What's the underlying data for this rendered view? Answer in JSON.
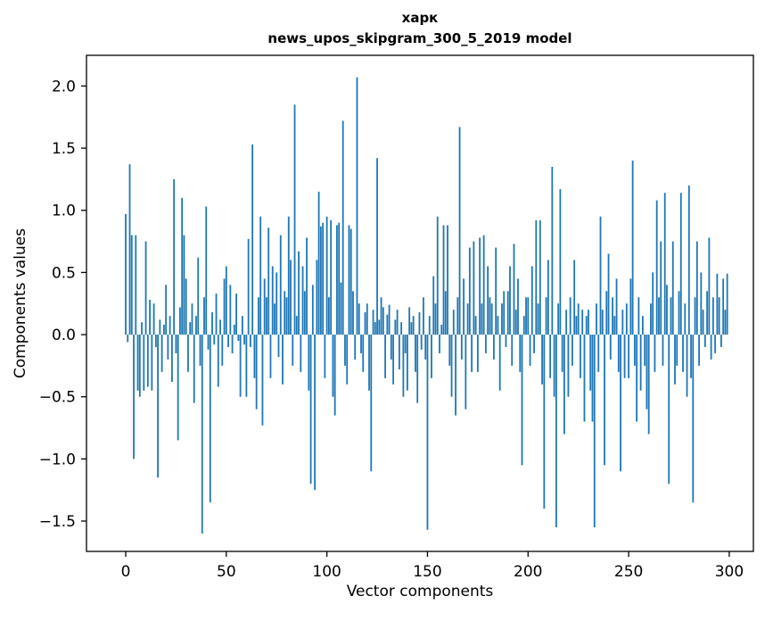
{
  "chart_data": {
    "type": "bar",
    "title_line1": "харк",
    "title_line2": "news_upos_skipgram_300_5_2019 model",
    "xlabel": "Vector components",
    "ylabel": "Components values",
    "bar_color": "#1f77b4",
    "axis_color": "#000000",
    "xlim": [
      -19.5,
      312
    ],
    "ylim": [
      -1.744,
      2.247
    ],
    "x_ticks": [
      0,
      50,
      100,
      150,
      200,
      250,
      300
    ],
    "x_tick_labels": [
      "0",
      "50",
      "100",
      "150",
      "200",
      "250",
      "300"
    ],
    "y_ticks": [
      2.0,
      1.5,
      1.0,
      0.5,
      0.0,
      -0.5,
      -1.0,
      -1.5
    ],
    "y_tick_labels": [
      "2.0",
      "1.5",
      "1.0",
      "0.5",
      "0.0",
      "−0.5",
      "−1.0",
      "−1.5"
    ],
    "bar_width_units": 0.8,
    "values": [
      0.97,
      -0.06,
      1.37,
      0.8,
      -1.0,
      0.8,
      -0.45,
      -0.5,
      0.1,
      -0.45,
      0.75,
      -0.42,
      0.28,
      -0.45,
      0.25,
      -0.1,
      -1.15,
      0.12,
      -0.3,
      0.08,
      0.4,
      -0.2,
      0.15,
      -0.38,
      1.25,
      -0.15,
      -0.85,
      0.22,
      1.1,
      0.8,
      0.45,
      -0.3,
      0.1,
      0.25,
      -0.55,
      0.15,
      0.62,
      -0.25,
      -1.6,
      0.3,
      1.03,
      -0.12,
      -1.35,
      0.18,
      -0.08,
      0.33,
      -0.42,
      0.12,
      -0.25,
      0.45,
      0.55,
      -0.1,
      0.4,
      -0.15,
      0.08,
      0.33,
      -0.05,
      -0.5,
      0.15,
      -0.08,
      -0.5,
      0.77,
      -0.1,
      1.53,
      -0.35,
      -0.6,
      0.3,
      0.95,
      -0.73,
      0.45,
      0.3,
      0.86,
      -0.35,
      0.55,
      0.25,
      0.5,
      -0.18,
      0.8,
      -0.4,
      0.35,
      0.3,
      0.95,
      0.6,
      -0.25,
      1.85,
      0.15,
      0.67,
      -0.3,
      0.55,
      0.35,
      0.78,
      -0.45,
      -1.2,
      0.4,
      -1.25,
      0.6,
      1.15,
      0.87,
      0.9,
      -0.35,
      0.95,
      0.3,
      0.92,
      -0.5,
      -0.65,
      0.88,
      0.9,
      0.42,
      1.72,
      -0.25,
      -0.4,
      0.88,
      0.85,
      0.35,
      -0.2,
      2.07,
      0.25,
      -0.15,
      -0.3,
      0.18,
      0.25,
      -0.45,
      -1.1,
      0.2,
      0.1,
      1.42,
      0.12,
      0.3,
      0.22,
      -0.35,
      0.16,
      0.24,
      -0.2,
      -0.4,
      0.12,
      0.2,
      -0.28,
      0.1,
      -0.5,
      -0.15,
      -0.45,
      0.22,
      0.1,
      0.15,
      -0.3,
      -0.55,
      0.18,
      -0.12,
      0.3,
      -0.2,
      -1.57,
      0.15,
      -0.35,
      0.47,
      0.25,
      0.95,
      -0.15,
      0.08,
      0.88,
      0.35,
      0.88,
      -0.25,
      -0.5,
      0.2,
      -0.65,
      0.3,
      1.67,
      -0.2,
      0.45,
      -0.6,
      0.25,
      0.7,
      -0.3,
      0.75,
      0.15,
      -0.3,
      0.78,
      0.25,
      0.8,
      -0.15,
      0.55,
      0.3,
      0.25,
      -0.2,
      0.7,
      0.15,
      -0.45,
      0.25,
      0.35,
      -0.1,
      0.35,
      0.55,
      -0.25,
      0.73,
      0.2,
      0.45,
      -0.3,
      -1.05,
      0.15,
      0.3,
      0.3,
      -0.25,
      0.55,
      -0.15,
      0.92,
      0.25,
      0.92,
      -0.4,
      -1.4,
      0.3,
      0.6,
      -0.35,
      1.35,
      -0.5,
      -1.55,
      0.25,
      1.17,
      -0.3,
      -0.8,
      0.2,
      -0.5,
      0.3,
      -0.25,
      0.6,
      0.15,
      0.25,
      -0.35,
      0.2,
      -0.7,
      0.15,
      0.2,
      -0.45,
      -0.7,
      -1.55,
      0.25,
      -0.3,
      0.95,
      0.2,
      -1.05,
      0.35,
      0.65,
      -0.2,
      0.3,
      0.15,
      0.45,
      -0.3,
      -1.1,
      0.2,
      -0.35,
      0.25,
      -0.35,
      0.45,
      1.4,
      -0.25,
      -0.7,
      0.3,
      -0.45,
      0.15,
      -0.25,
      -0.6,
      -0.8,
      0.25,
      0.5,
      -0.3,
      1.08,
      0.3,
      0.75,
      -0.25,
      1.14,
      0.4,
      -1.2,
      0.3,
      0.75,
      -0.4,
      -0.25,
      0.35,
      1.14,
      -0.3,
      0.25,
      -0.5,
      1.2,
      -0.35,
      -1.35,
      0.3,
      0.75,
      -0.25,
      0.5,
      0.2,
      -0.1,
      0.35,
      0.78,
      -0.2,
      0.3,
      -0.15,
      0.49,
      0.3,
      -0.1,
      0.45,
      0.2,
      0.49
    ]
  }
}
